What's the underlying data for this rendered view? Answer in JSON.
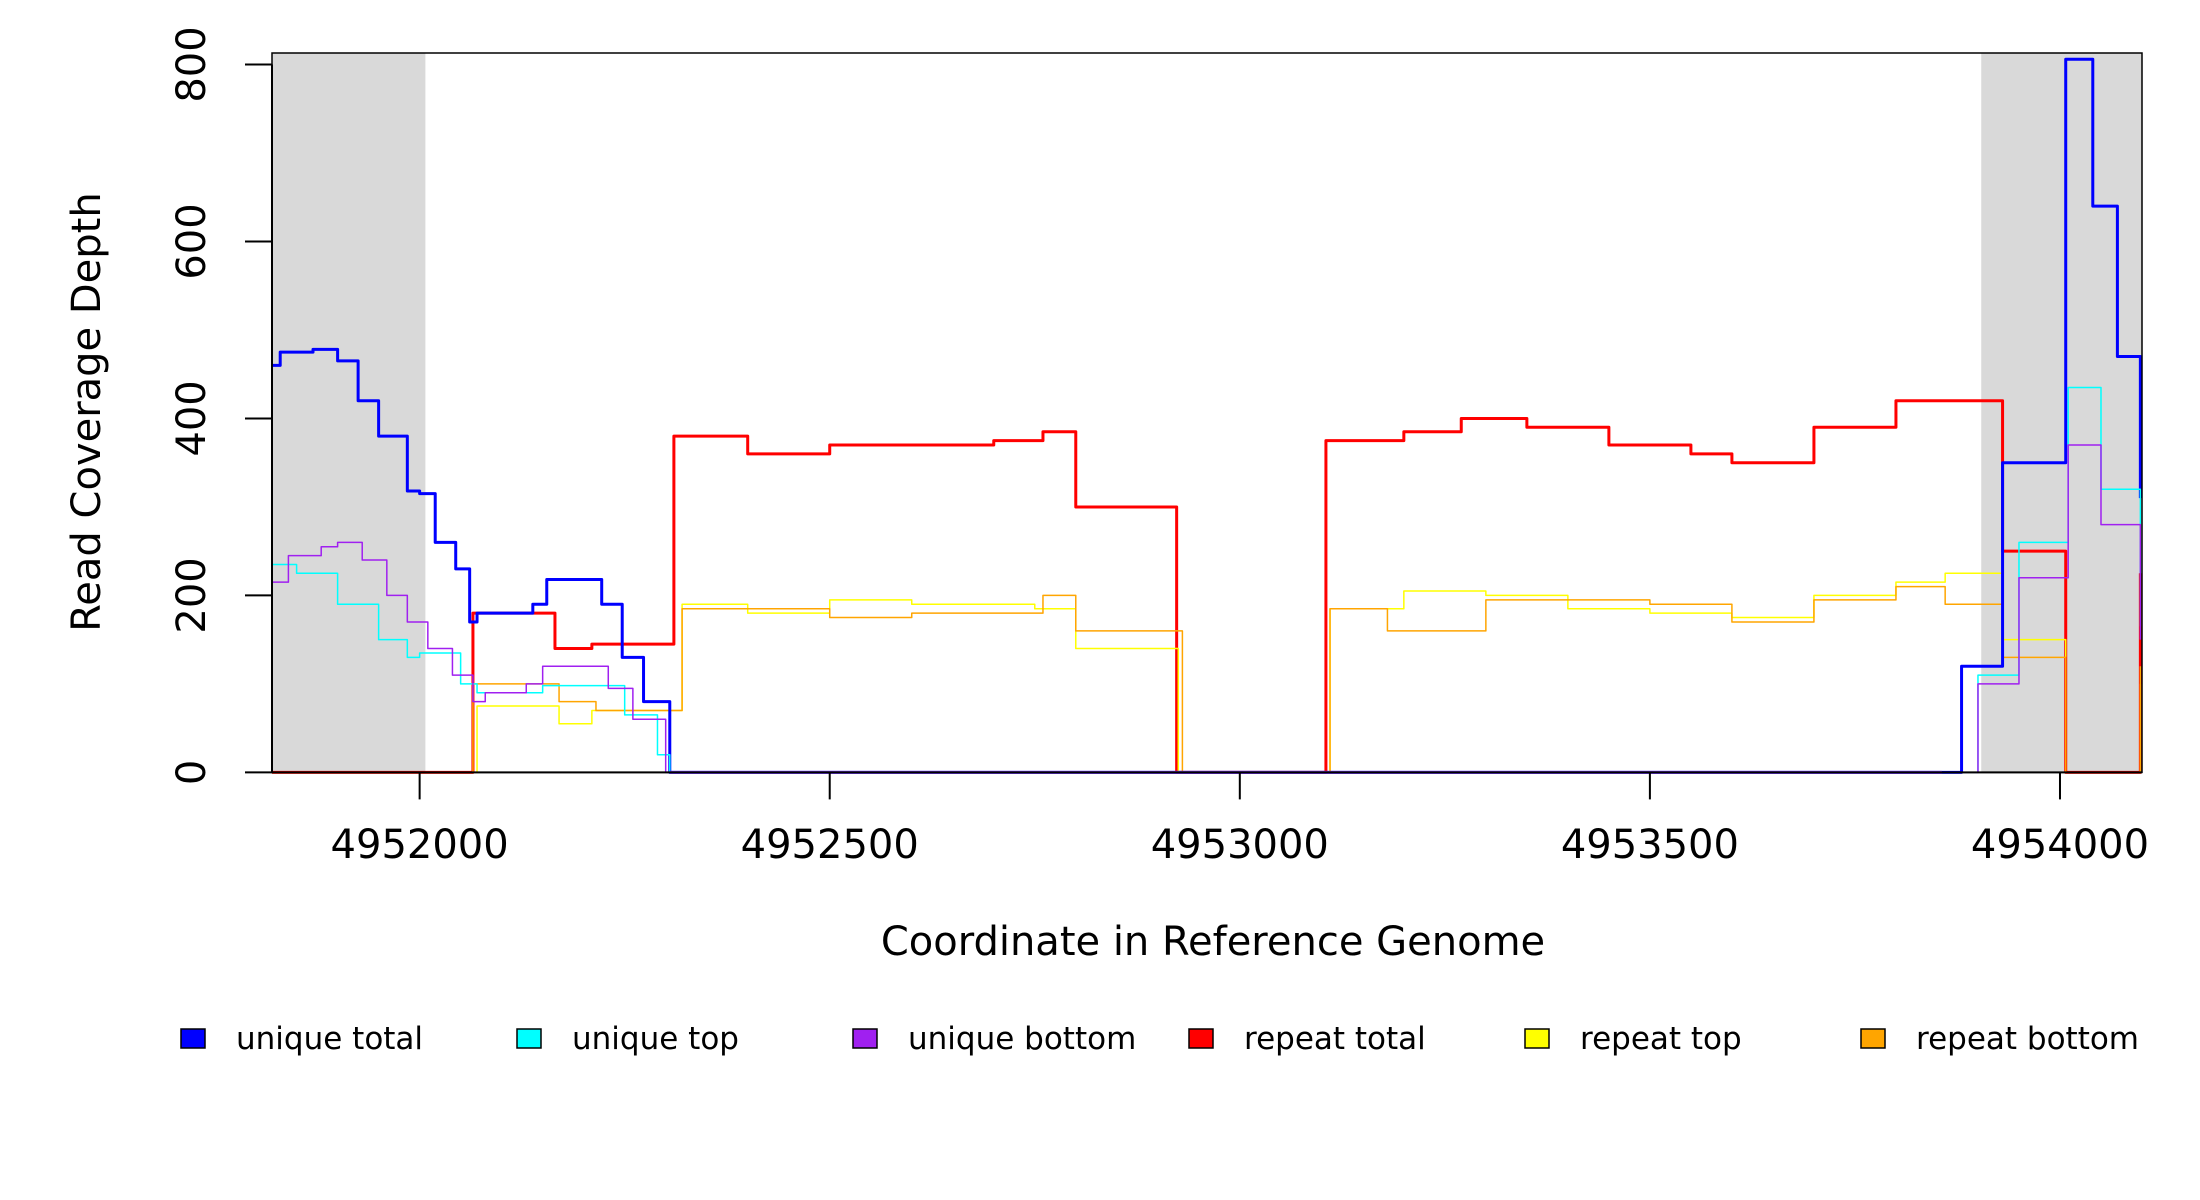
{
  "chart_data": {
    "type": "line",
    "title": "",
    "xlabel": "Coordinate in Reference Genome",
    "ylabel": "Read Coverage Depth",
    "xlim": [
      4951820,
      4954100
    ],
    "ylim": [
      0,
      813
    ],
    "xticks": [
      4952000,
      4952500,
      4953000,
      4953500,
      4954000
    ],
    "xtick_labels": [
      "4952000",
      "4952500",
      "4953000",
      "4953500",
      "4954000"
    ],
    "yticks": [
      0,
      200,
      400,
      600,
      800
    ],
    "ytick_labels": [
      "0",
      "200",
      "400",
      "600",
      "800"
    ],
    "grid": false,
    "legend_position": "bottom",
    "highlight_regions": [
      [
        4951820,
        4952007
      ],
      [
        4953904,
        4954100
      ]
    ],
    "highlight_color": "#d9d9d9",
    "series": [
      {
        "name": "unique total",
        "color": "#0000ff",
        "width": 3,
        "x": [
          4951820,
          4951830,
          4951870,
          4951900,
          4951925,
          4951950,
          4951985,
          4952000,
          4952019,
          4952044,
          4952061,
          4952070,
          4952138,
          4952155,
          4952218,
          4952222,
          4952247,
          4952273,
          4952305,
          4953856,
          4953880,
          4953930,
          4954007,
          4954040,
          4954070,
          4954098
        ],
        "y": [
          460,
          475,
          478,
          465,
          420,
          380,
          318,
          315,
          260,
          230,
          170,
          180,
          190,
          218,
          218,
          190,
          130,
          80,
          0,
          0,
          120,
          350,
          806,
          640,
          470,
          310
        ]
      },
      {
        "name": "unique top",
        "color": "#00ffff",
        "width": 1.5,
        "x": [
          4951820,
          4951850,
          4951900,
          4951950,
          4951985,
          4952000,
          4952050,
          4952070,
          4952130,
          4952150,
          4952220,
          4952250,
          4952290,
          4952305,
          4953856,
          4953900,
          4953950,
          4954010,
          4954050,
          4954098
        ],
        "y": [
          235,
          225,
          190,
          150,
          130,
          135,
          100,
          90,
          90,
          98,
          98,
          65,
          20,
          0,
          0,
          110,
          260,
          435,
          320,
          165
        ]
      },
      {
        "name": "unique bottom",
        "color": "#a020f0",
        "width": 1.5,
        "x": [
          4951820,
          4951840,
          4951880,
          4951900,
          4951930,
          4951960,
          4951985,
          4952010,
          4952040,
          4952065,
          4952080,
          4952130,
          4952150,
          4952215,
          4952230,
          4952260,
          4952300,
          4953856,
          4953900,
          4953950,
          4954010,
          4954050,
          4954098
        ],
        "y": [
          215,
          245,
          255,
          260,
          240,
          200,
          170,
          140,
          110,
          80,
          90,
          100,
          120,
          120,
          95,
          60,
          0,
          0,
          100,
          220,
          370,
          280,
          150
        ]
      },
      {
        "name": "repeat total",
        "color": "#ff0000",
        "width": 3,
        "x": [
          4951820,
          4951995,
          4952065,
          4952150,
          4952165,
          4952210,
          4952310,
          4952400,
          4952500,
          4952600,
          4952700,
          4952760,
          4952800,
          4952923,
          4952950,
          4953105,
          4953200,
          4953270,
          4953350,
          4953450,
          4953500,
          4953550,
          4953600,
          4953700,
          4953800,
          4953850,
          4953930,
          4954007,
          4954098
        ],
        "y": [
          0,
          0,
          180,
          180,
          140,
          145,
          380,
          360,
          370,
          370,
          375,
          385,
          300,
          0,
          0,
          375,
          385,
          400,
          390,
          370,
          370,
          360,
          350,
          390,
          420,
          420,
          250,
          0,
          225
        ]
      },
      {
        "name": "repeat top",
        "color": "#ffff00",
        "width": 1.5,
        "x": [
          4951820,
          4951995,
          4952070,
          4952150,
          4952170,
          4952210,
          4952320,
          4952400,
          4952500,
          4952600,
          4952750,
          4952800,
          4952925,
          4952950,
          4953110,
          4953200,
          4953300,
          4953400,
          4953500,
          4953600,
          4953700,
          4953800,
          4953860,
          4953930,
          4954007,
          4954098
        ],
        "y": [
          0,
          0,
          75,
          75,
          55,
          70,
          190,
          180,
          195,
          190,
          185,
          140,
          0,
          0,
          185,
          205,
          200,
          185,
          180,
          175,
          200,
          215,
          225,
          150,
          0,
          100
        ]
      },
      {
        "name": "repeat bottom",
        "color": "#ffa500",
        "width": 1.5,
        "x": [
          4951820,
          4951995,
          4952065,
          4952150,
          4952170,
          4952215,
          4952320,
          4952400,
          4952500,
          4952600,
          4952760,
          4952800,
          4952930,
          4952950,
          4953110,
          4953180,
          4953300,
          4953400,
          4953500,
          4953600,
          4953700,
          4953800,
          4953860,
          4953930,
          4954007,
          4954098
        ],
        "y": [
          0,
          0,
          100,
          100,
          80,
          70,
          185,
          185,
          175,
          180,
          200,
          160,
          0,
          0,
          185,
          160,
          195,
          195,
          190,
          170,
          195,
          210,
          190,
          130,
          0,
          120
        ]
      }
    ]
  }
}
